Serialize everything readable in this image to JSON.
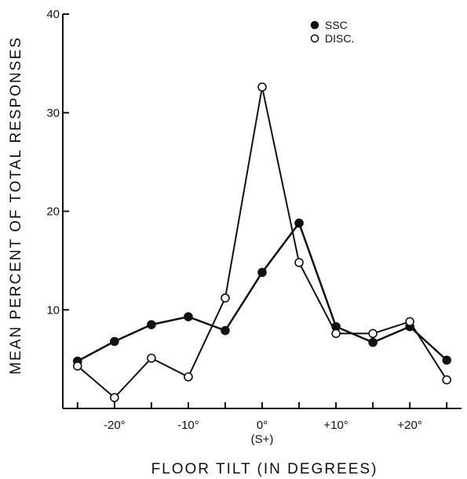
{
  "chart_data": {
    "type": "line",
    "title": "",
    "xlabel": "FLOOR TILT (IN DEGREES)",
    "ylabel": "MEAN PERCENT OF TOTAL RESPONSES",
    "xlim": [
      -27,
      27
    ],
    "ylim": [
      0,
      40
    ],
    "x_ticks": [
      -20,
      -10,
      0,
      10,
      20
    ],
    "x_tick_labels": [
      "-20°",
      "-10°",
      "0°",
      "+10°",
      "+20°"
    ],
    "x_sublabel": {
      "x": 0,
      "text": "(S+)"
    },
    "y_ticks": [
      10,
      20,
      30,
      40
    ],
    "y_tick_labels": [
      "10",
      "20",
      "30",
      "40"
    ],
    "grid": false,
    "legend_position": "top-right",
    "x": [
      -25,
      -20,
      -15,
      -10,
      -5,
      0,
      5,
      10,
      15,
      20,
      25
    ],
    "series": [
      {
        "name": "SSC",
        "marker": "filled",
        "values": [
          4.8,
          6.8,
          8.5,
          9.3,
          7.9,
          13.8,
          18.8,
          8.3,
          6.7,
          8.3,
          4.9
        ]
      },
      {
        "name": "DISC.",
        "marker": "open",
        "values": [
          4.3,
          1.1,
          5.1,
          3.2,
          11.2,
          32.6,
          14.8,
          7.6,
          7.6,
          8.8,
          2.9
        ]
      }
    ]
  }
}
